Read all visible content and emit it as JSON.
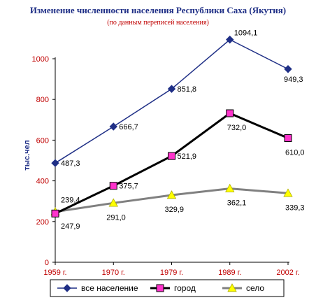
{
  "chart_data": {
    "type": "line",
    "title": "Изменение численности населения Республики Саха (Якутия)",
    "subtitle": "(по данным переписей населения)",
    "xlabel": "",
    "ylabel": "тыс.чел",
    "ylim": [
      0,
      1100
    ],
    "yticks": [
      0,
      200,
      400,
      600,
      800,
      1000
    ],
    "categories": [
      "1959 г.",
      "1970 г.",
      "1979 г.",
      "1989 г.",
      "2002 г."
    ],
    "grid": false,
    "legend_position": "bottom",
    "series": [
      {
        "name": "все население",
        "values": [
          487.3,
          666.7,
          851.8,
          1094.1,
          949.3
        ],
        "labels": [
          "487,3",
          "666,7",
          "851,8",
          "1094,1",
          "949,3"
        ],
        "color": "#1f2f86",
        "marker": "diamond"
      },
      {
        "name": "город",
        "values": [
          239.4,
          375.7,
          521.9,
          732.0,
          610.0
        ],
        "labels": [
          "239,4",
          "375,7",
          "521,9",
          "732,0",
          "610,0"
        ],
        "color": "#000000",
        "marker_color": "#ff33cc",
        "marker": "square"
      },
      {
        "name": "село",
        "values": [
          247.9,
          291.0,
          329.9,
          362.1,
          339.3
        ],
        "labels": [
          "247,9",
          "291,0",
          "329,9",
          "362,1",
          "339,3"
        ],
        "color": "#808080",
        "marker_color": "#ffff00",
        "marker": "triangle"
      }
    ]
  }
}
